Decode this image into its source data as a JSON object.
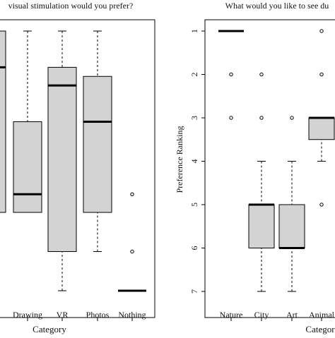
{
  "colors": {
    "box_fill": "#d3d3d3",
    "stroke": "#000000",
    "background": "#ffffff"
  },
  "chart_data": [
    {
      "type": "boxplot",
      "title": "visual stimulation would you prefer?",
      "xlabel": "Category",
      "ylabel": "",
      "categories": [
        "",
        "Drawing",
        "VR",
        "Photos",
        "Nothing"
      ],
      "y_tick_labels": [],
      "y_reversed": false,
      "grid": false,
      "legend": "none",
      "note": "left edge cropped; y-axis labels not visible",
      "boxes": [
        {
          "whisker_low": null,
          "q1": 0.0,
          "median": 0.8,
          "q3": 1.0,
          "whisker_high": null,
          "outliers": []
        },
        {
          "whisker_low": 0.0,
          "q1": 0.0,
          "median": 0.1,
          "q3": 0.5,
          "whisker_high": 1.0,
          "outliers": []
        },
        {
          "whisker_low": -1.0,
          "q1": -0.5,
          "median": 0.7,
          "q3": 0.8,
          "whisker_high": 1.0,
          "outliers": []
        },
        {
          "whisker_low": -0.5,
          "q1": 0.0,
          "median": 0.5,
          "q3": 0.75,
          "whisker_high": 1.0,
          "outliers": []
        },
        {
          "whisker_low": -1.0,
          "q1": -1.0,
          "median": -1.0,
          "q3": -1.0,
          "whisker_high": -1.0,
          "outliers": [
            0.1,
            -0.5
          ]
        }
      ]
    },
    {
      "type": "boxplot",
      "title": "What would you like to see du",
      "xlabel": "Categor",
      "ylabel": "Preference Ranking",
      "categories": [
        "Nature",
        "City",
        "Art",
        "Animal"
      ],
      "y_tick_labels": [
        "1",
        "2",
        "3",
        "4",
        "5",
        "6",
        "7"
      ],
      "y_ticks": [
        1,
        2,
        3,
        4,
        5,
        6,
        7
      ],
      "y_reversed": true,
      "grid": false,
      "legend": "none",
      "boxes": [
        {
          "whisker_low": 1,
          "q1": 1,
          "median": 1,
          "q3": 1,
          "whisker_high": 1,
          "outliers": [
            2,
            3
          ]
        },
        {
          "whisker_low": 4,
          "q1": 5,
          "median": 5,
          "q3": 6,
          "whisker_high": 7,
          "outliers": [
            2,
            3
          ]
        },
        {
          "whisker_low": 4,
          "q1": 5,
          "median": 6,
          "q3": 6,
          "whisker_high": 7,
          "outliers": [
            3
          ]
        },
        {
          "whisker_low": 3,
          "q1": 3,
          "median": 3,
          "q3": 3.5,
          "whisker_high": 4,
          "outliers": [
            1,
            2,
            5
          ]
        }
      ]
    }
  ]
}
